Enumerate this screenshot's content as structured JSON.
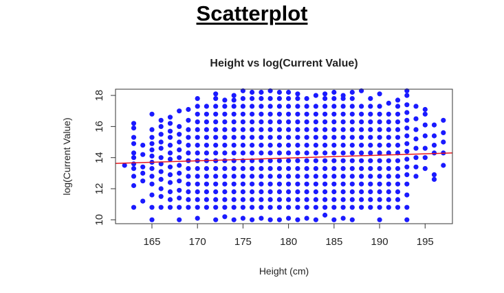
{
  "page": {
    "heading": "Scatterplot"
  },
  "colors": {
    "points": "#1a1aff",
    "trend_line": "#e8141c",
    "axis": "#333333"
  },
  "chart_data": {
    "type": "scatter",
    "title": "Height vs log(Current Value)",
    "xlabel": "Height (cm)",
    "ylabel": "log(Current Value)",
    "xlim": [
      161,
      198
    ],
    "ylim": [
      9.75,
      18.4
    ],
    "xticks": [
      165,
      170,
      175,
      180,
      185,
      190,
      195
    ],
    "yticks": [
      10,
      12,
      14,
      16,
      18
    ],
    "grid": false,
    "legend": "none",
    "trend_line": {
      "x": [
        161,
        198
      ],
      "y": [
        13.63,
        14.3
      ]
    },
    "points": [
      {
        "x": 162,
        "y_values": [
          13.5
        ]
      },
      {
        "x": 163,
        "y_values": [
          10.8,
          12.2,
          12.8,
          13.3,
          13.6,
          14.0,
          14.3,
          14.9,
          15.3,
          15.9,
          16.2
        ]
      },
      {
        "x": 164,
        "y_values": [
          11.2,
          12.5,
          13.0,
          13.4,
          14.2,
          14.8
        ]
      },
      {
        "x": 165,
        "y_values": [
          10.0,
          10.8,
          11.6,
          12.3,
          12.8,
          13.3,
          13.7,
          14.1,
          14.5,
          14.9,
          15.3,
          15.8,
          16.8
        ]
      },
      {
        "x": 166,
        "y_values": [
          10.8,
          11.5,
          12.0,
          12.6,
          13.1,
          13.6,
          14.0,
          14.6,
          15.0,
          15.5,
          16.0,
          16.4
        ]
      },
      {
        "x": 167,
        "y_values": [
          10.8,
          11.3,
          11.8,
          12.4,
          12.9,
          13.4,
          13.9,
          14.3,
          14.8,
          15.3,
          15.7,
          16.2,
          16.6
        ]
      },
      {
        "x": 168,
        "y_values": [
          10.0,
          10.8,
          11.4,
          11.9,
          12.5,
          13.0,
          13.5,
          14.0,
          14.5,
          15.0,
          15.5,
          16.0,
          17.0
        ]
      },
      {
        "x": 169,
        "y_values": [
          10.8,
          11.3,
          11.8,
          12.3,
          12.8,
          13.3,
          13.8,
          14.3,
          14.8,
          15.3,
          15.8,
          16.4,
          17.1
        ]
      },
      {
        "x": 170,
        "y_values": [
          10.1,
          10.8,
          11.3,
          11.8,
          12.3,
          12.8,
          13.3,
          13.8,
          14.3,
          14.8,
          15.3,
          15.8,
          16.3,
          16.8,
          17.3,
          17.8
        ]
      },
      {
        "x": 171,
        "y_values": [
          10.8,
          11.3,
          11.8,
          12.3,
          12.8,
          13.3,
          13.8,
          14.3,
          14.8,
          15.3,
          15.8,
          16.3,
          16.8,
          17.3
        ]
      },
      {
        "x": 172,
        "y_values": [
          10.0,
          10.8,
          11.3,
          11.8,
          12.3,
          12.8,
          13.3,
          13.8,
          14.3,
          14.8,
          15.3,
          15.8,
          16.3,
          16.8,
          17.3,
          17.8,
          18.1
        ]
      },
      {
        "x": 173,
        "y_values": [
          10.2,
          10.8,
          11.3,
          11.8,
          12.3,
          12.8,
          13.3,
          13.8,
          14.3,
          14.8,
          15.3,
          15.8,
          16.3,
          16.8,
          17.3,
          17.7
        ]
      },
      {
        "x": 174,
        "y_values": [
          10.0,
          10.8,
          11.3,
          11.8,
          12.3,
          12.8,
          13.3,
          13.8,
          14.3,
          14.8,
          15.3,
          15.8,
          16.3,
          16.8,
          17.3,
          17.7,
          18.0
        ]
      },
      {
        "x": 175,
        "y_values": [
          10.1,
          10.8,
          11.3,
          11.8,
          12.3,
          12.8,
          13.3,
          13.8,
          14.3,
          14.8,
          15.3,
          15.8,
          16.3,
          16.8,
          17.3,
          17.8,
          18.3
        ]
      },
      {
        "x": 176,
        "y_values": [
          10.0,
          10.8,
          11.3,
          11.8,
          12.3,
          12.8,
          13.3,
          13.8,
          14.3,
          14.8,
          15.3,
          15.8,
          16.3,
          16.8,
          17.3,
          17.8,
          18.2
        ]
      },
      {
        "x": 177,
        "y_values": [
          10.1,
          10.8,
          11.3,
          11.8,
          12.3,
          12.8,
          13.3,
          13.8,
          14.3,
          14.8,
          15.3,
          15.8,
          16.3,
          16.8,
          17.3,
          17.8,
          18.2
        ]
      },
      {
        "x": 178,
        "y_values": [
          10.0,
          10.8,
          11.3,
          11.8,
          12.3,
          12.8,
          13.3,
          13.8,
          14.3,
          14.8,
          15.3,
          15.8,
          16.3,
          16.8,
          17.3,
          17.8,
          18.3
        ]
      },
      {
        "x": 179,
        "y_values": [
          10.0,
          10.8,
          11.3,
          11.8,
          12.3,
          12.8,
          13.3,
          13.8,
          14.3,
          14.8,
          15.3,
          15.8,
          16.3,
          16.8,
          17.3,
          17.8,
          18.2
        ]
      },
      {
        "x": 180,
        "y_values": [
          10.1,
          10.8,
          11.3,
          11.8,
          12.3,
          12.8,
          13.3,
          13.8,
          14.3,
          14.8,
          15.3,
          15.8,
          16.3,
          16.8,
          17.3,
          17.8,
          18.2
        ]
      },
      {
        "x": 181,
        "y_values": [
          10.0,
          10.8,
          11.3,
          11.8,
          12.3,
          12.8,
          13.3,
          13.8,
          14.3,
          14.8,
          15.3,
          15.8,
          16.3,
          16.8,
          17.3,
          17.8,
          18.1
        ]
      },
      {
        "x": 182,
        "y_values": [
          10.1,
          10.8,
          11.3,
          11.8,
          12.3,
          12.8,
          13.3,
          13.8,
          14.3,
          14.8,
          15.3,
          15.8,
          16.3,
          16.8,
          17.3,
          17.8
        ]
      },
      {
        "x": 183,
        "y_values": [
          10.0,
          10.8,
          11.3,
          11.8,
          12.3,
          12.8,
          13.3,
          13.8,
          14.3,
          14.8,
          15.3,
          15.8,
          16.3,
          16.8,
          17.3,
          18.0
        ]
      },
      {
        "x": 184,
        "y_values": [
          10.3,
          10.8,
          11.3,
          11.8,
          12.3,
          12.8,
          13.3,
          13.8,
          14.3,
          14.8,
          15.3,
          15.8,
          16.3,
          16.8,
          17.3,
          17.8,
          18.1
        ]
      },
      {
        "x": 185,
        "y_values": [
          10.0,
          10.8,
          11.3,
          11.8,
          12.3,
          12.8,
          13.3,
          13.8,
          14.3,
          14.8,
          15.3,
          15.8,
          16.3,
          16.8,
          17.3,
          17.8,
          18.2
        ]
      },
      {
        "x": 186,
        "y_values": [
          10.1,
          10.8,
          11.3,
          11.8,
          12.3,
          12.8,
          13.3,
          13.8,
          14.3,
          14.8,
          15.3,
          15.8,
          16.3,
          16.8,
          17.3,
          17.8,
          18.0
        ]
      },
      {
        "x": 187,
        "y_values": [
          10.0,
          10.8,
          11.3,
          11.8,
          12.3,
          12.8,
          13.3,
          13.8,
          14.3,
          14.8,
          15.3,
          15.8,
          16.3,
          16.8,
          17.3,
          17.8,
          18.2
        ]
      },
      {
        "x": 188,
        "y_values": [
          10.8,
          11.3,
          11.8,
          12.3,
          12.8,
          13.3,
          13.8,
          14.3,
          14.8,
          15.3,
          15.8,
          16.3,
          16.8,
          17.3,
          18.3
        ]
      },
      {
        "x": 189,
        "y_values": [
          10.8,
          11.3,
          11.8,
          12.3,
          12.8,
          13.3,
          13.8,
          14.3,
          14.8,
          15.3,
          15.8,
          16.3,
          16.8,
          17.3,
          17.8
        ]
      },
      {
        "x": 190,
        "y_values": [
          10.0,
          10.8,
          11.3,
          11.8,
          12.3,
          12.8,
          13.3,
          13.8,
          14.3,
          14.8,
          15.3,
          15.8,
          16.3,
          16.8,
          17.3,
          18.1
        ]
      },
      {
        "x": 191,
        "y_values": [
          10.8,
          11.3,
          11.8,
          12.3,
          12.8,
          13.3,
          13.8,
          14.3,
          14.8,
          15.3,
          15.8,
          16.3,
          16.8,
          17.5
        ]
      },
      {
        "x": 192,
        "y_values": [
          10.8,
          11.3,
          11.8,
          12.3,
          12.8,
          13.3,
          13.8,
          14.3,
          14.8,
          15.3,
          15.8,
          16.3,
          16.8,
          17.3,
          17.7
        ]
      },
      {
        "x": 193,
        "y_values": [
          10.0,
          10.8,
          11.6,
          12.3,
          12.9,
          13.4,
          13.9,
          14.4,
          14.9,
          15.4,
          15.9,
          16.4,
          16.9,
          17.4,
          18.0,
          18.3
        ]
      },
      {
        "x": 194,
        "y_values": [
          12.8,
          13.4,
          14.0,
          14.6,
          15.2,
          15.8,
          16.5,
          17.3
        ]
      },
      {
        "x": 195,
        "y_values": [
          13.3,
          14.0,
          14.6,
          15.4,
          16.1,
          16.8,
          17.1
        ]
      },
      {
        "x": 196,
        "y_values": [
          12.6,
          12.9,
          14.3,
          14.8,
          15.4,
          16.1
        ]
      },
      {
        "x": 197,
        "y_values": [
          13.5,
          14.3,
          15.0,
          15.6,
          16.4
        ]
      }
    ]
  }
}
